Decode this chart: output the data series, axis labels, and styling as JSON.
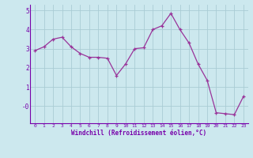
{
  "x": [
    0,
    1,
    2,
    3,
    4,
    5,
    6,
    7,
    8,
    9,
    10,
    11,
    12,
    13,
    14,
    15,
    16,
    17,
    18,
    19,
    20,
    21,
    22,
    23
  ],
  "y": [
    2.9,
    3.1,
    3.5,
    3.6,
    3.1,
    2.75,
    2.55,
    2.55,
    2.5,
    1.6,
    2.2,
    3.0,
    3.05,
    4.0,
    4.2,
    4.85,
    4.0,
    3.3,
    2.2,
    1.35,
    -0.35,
    -0.4,
    -0.45,
    0.5
  ],
  "line_color": "#993399",
  "marker": "+",
  "bg_color": "#cce8ee",
  "grid_color": "#aaccd4",
  "xlabel": "Windchill (Refroidissement éolien,°C)",
  "xlim": [
    -0.5,
    23.5
  ],
  "ylim": [
    -0.9,
    5.3
  ],
  "ytick_vals": [
    0,
    1,
    2,
    3,
    4,
    5
  ],
  "ytick_labels": [
    "-0",
    "1",
    "2",
    "3",
    "4",
    "5"
  ],
  "xticks": [
    0,
    1,
    2,
    3,
    4,
    5,
    6,
    7,
    8,
    9,
    10,
    11,
    12,
    13,
    14,
    15,
    16,
    17,
    18,
    19,
    20,
    21,
    22,
    23
  ],
  "label_color": "#7700aa",
  "tick_color": "#7700aa",
  "axis_color": "#7700aa"
}
